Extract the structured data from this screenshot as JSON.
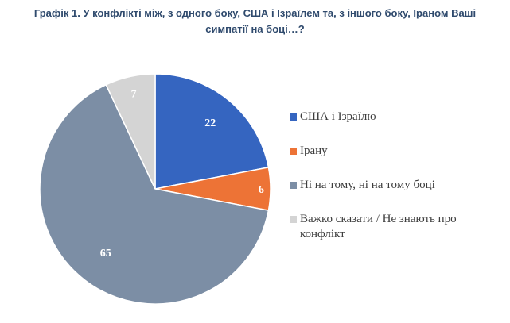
{
  "title_lines": [
    "Графік 1. У конфлікті між, з одного боку, США і Ізраїлем та, з іншого боку, Іраном Ваші",
    "симпатії на боці…?"
  ],
  "chart_data": {
    "type": "pie",
    "title": "Графік 1. У конфлікті між, з одного боку, США і Ізраїлем та, з іншого боку, Іраном Ваші симпатії на боці…?",
    "slices": [
      {
        "label": "США і Ізраїлю",
        "value": 22,
        "color": "#3565c0"
      },
      {
        "label": "Ірану",
        "value": 6,
        "color": "#ed7336"
      },
      {
        "label": "Ні на тому, ні на тому боці",
        "value": 65,
        "color": "#7c8ea5"
      },
      {
        "label": "Важко сказати / Не знають про конфлікт",
        "value": 7,
        "color": "#d4d4d4"
      }
    ],
    "data_labels": [
      "22",
      "6",
      "65",
      "7"
    ],
    "label_color": "#ffffff",
    "start": "12 o'clock",
    "direction": "clockwise",
    "legend_position": "right"
  }
}
